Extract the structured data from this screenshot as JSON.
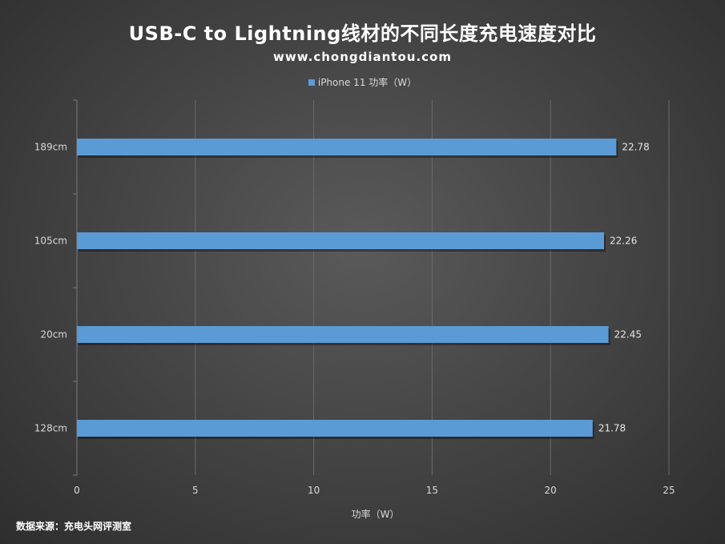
{
  "chart_data": {
    "type": "bar",
    "orientation": "horizontal",
    "title": "USB-C to Lightning线材的不同长度充电速度对比",
    "subtitle": "www.chongdiantou.com",
    "categories": [
      "189cm",
      "105cm",
      "20cm",
      "128cm"
    ],
    "series": [
      {
        "name": "iPhone 11 功率（W）",
        "values": [
          22.78,
          22.26,
          22.45,
          21.78
        ]
      }
    ],
    "xlabel": "功率（W）",
    "ylabel": "",
    "xlim": [
      0,
      25
    ],
    "xticks": [
      "0",
      "5",
      "10",
      "15",
      "20",
      "25"
    ],
    "grid": true,
    "legend": "top",
    "bar_color": "#5b9bd5",
    "source": "数据来源：充电头网评测室"
  }
}
